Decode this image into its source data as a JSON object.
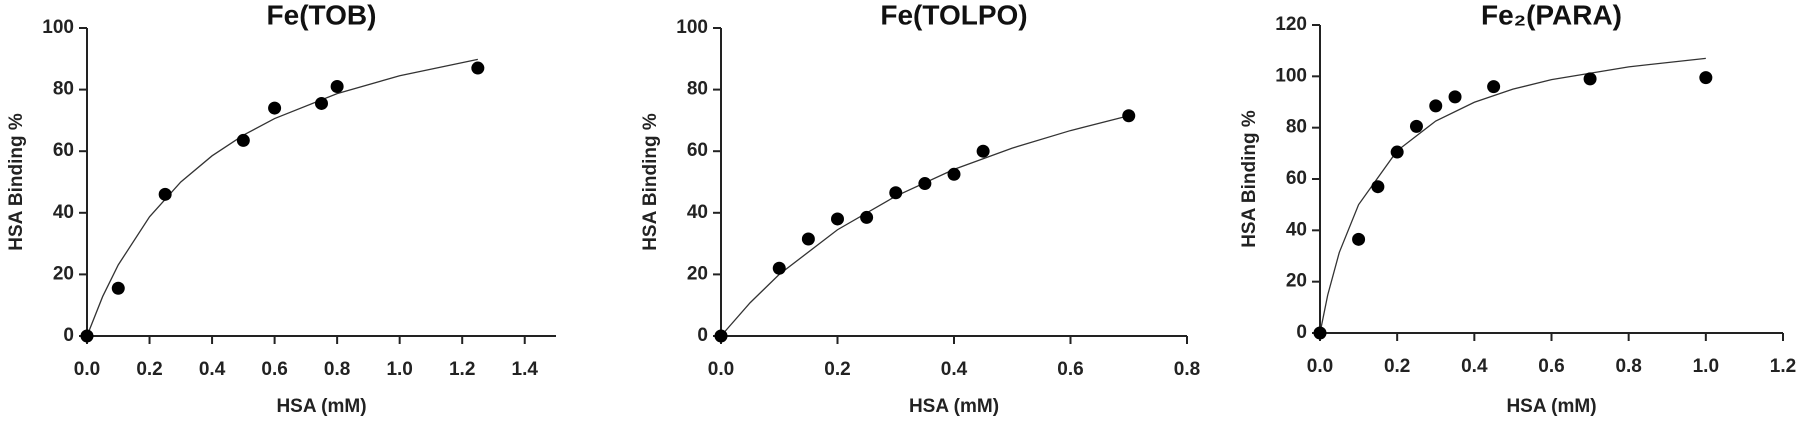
{
  "chart_data": [
    {
      "type": "scatter",
      "title": "Fe(TOB)",
      "x_label": "HSA (mM)",
      "y_label": "HSA Binding %",
      "color": "#000000",
      "x": [
        0,
        0.1,
        0.25,
        0.5,
        0.6,
        0.75,
        0.8,
        1.25
      ],
      "values": [
        0,
        15.5,
        46,
        63.5,
        74,
        75.5,
        81,
        87
      ],
      "fit": {
        "x": [
          0,
          0.05,
          0.1,
          0.2,
          0.3,
          0.4,
          0.5,
          0.6,
          0.8,
          1.0,
          1.25
        ],
        "values": [
          0,
          12.8,
          23.1,
          38.7,
          50,
          58.5,
          65.2,
          70.6,
          78.7,
          84.5,
          89.8
        ]
      },
      "xlim": [
        0,
        1.5
      ],
      "xticks": [
        {
          "value": 0,
          "label": "0.0"
        },
        0.2,
        0.4,
        0.6,
        0.8,
        {
          "value": 1,
          "label": "1.0"
        },
        1.2,
        1.4
      ],
      "ylim": [
        0,
        100
      ],
      "yticks": [
        0,
        20,
        40,
        60,
        80,
        100
      ]
    },
    {
      "type": "scatter",
      "title": "Fe(TOLPO)",
      "x_label": "HSA (mM)",
      "y_label": "HSA Binding %",
      "color": "#000000",
      "x": [
        0,
        0.1,
        0.15,
        0.2,
        0.25,
        0.3,
        0.35,
        0.4,
        0.45,
        0.7
      ],
      "values": [
        0,
        22,
        31.5,
        38,
        38.5,
        46.5,
        49.5,
        52.5,
        60,
        71.5
      ],
      "fit": {
        "x": [
          0,
          0.05,
          0.1,
          0.2,
          0.3,
          0.4,
          0.5,
          0.6,
          0.7
        ],
        "values": [
          0,
          10.8,
          20,
          34.5,
          45.4,
          54.1,
          61,
          66.7,
          71.5
        ]
      },
      "xlim": [
        0,
        0.8
      ],
      "xticks": [
        {
          "value": 0,
          "label": "0.0"
        },
        0.2,
        0.4,
        0.6,
        0.8
      ],
      "ylim": [
        0,
        100
      ],
      "yticks": [
        0,
        20,
        40,
        60,
        80,
        100
      ]
    },
    {
      "type": "scatter",
      "title": "Fe₂(PARA)",
      "x_label": "HSA (mM)",
      "y_label": "HSA Binding %",
      "color": "#000000",
      "x": [
        0,
        0.1,
        0.15,
        0.2,
        0.25,
        0.3,
        0.35,
        0.45,
        0.7,
        1.0
      ],
      "values": [
        0,
        36.5,
        57,
        70.5,
        80.5,
        88.5,
        92,
        96,
        99,
        99.5
      ],
      "fit": {
        "x": [
          0,
          0.02,
          0.05,
          0.1,
          0.2,
          0.3,
          0.4,
          0.5,
          0.6,
          0.8,
          1.0
        ],
        "values": [
          0,
          14.8,
          31.4,
          50,
          71,
          82.6,
          89.9,
          95,
          98.7,
          103.7,
          107
        ]
      },
      "xlim": [
        0,
        1.2
      ],
      "xticks": [
        {
          "value": 0,
          "label": "0.0"
        },
        0.2,
        0.4,
        0.6,
        0.8,
        {
          "value": 1,
          "label": "1.0"
        },
        1.2
      ],
      "ylim": [
        0,
        120
      ],
      "yticks": [
        0,
        20,
        40,
        60,
        80,
        100,
        120
      ]
    }
  ]
}
